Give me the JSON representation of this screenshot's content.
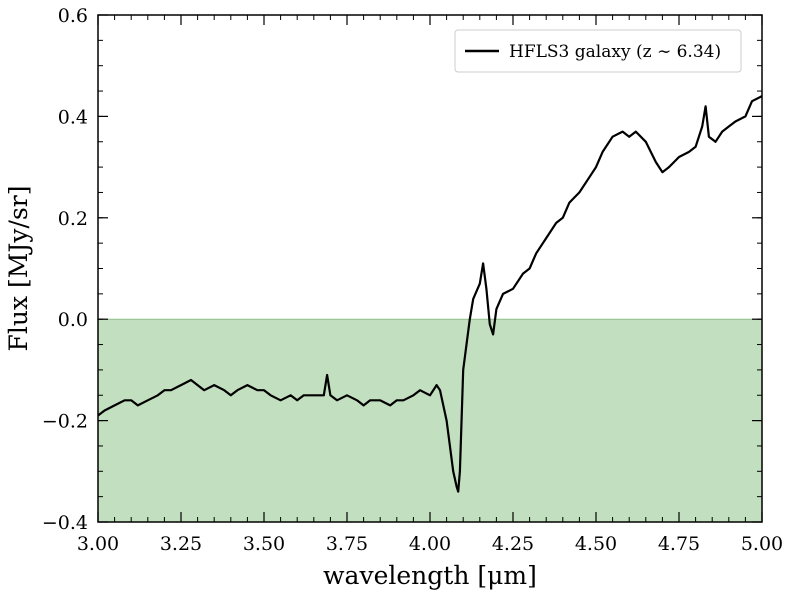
{
  "chart_data": {
    "type": "line",
    "title": "",
    "xlabel": "wavelength [μm]",
    "ylabel": "Flux [MJy/sr]",
    "xlim": [
      3.0,
      5.0
    ],
    "ylim": [
      -0.4,
      0.6
    ],
    "x_ticks": [
      3.0,
      3.25,
      3.5,
      3.75,
      4.0,
      4.25,
      4.5,
      4.75,
      5.0
    ],
    "x_tick_labels": [
      "3.00",
      "3.25",
      "3.50",
      "3.75",
      "4.00",
      "4.25",
      "4.50",
      "4.75",
      "5.00"
    ],
    "y_ticks": [
      -0.4,
      -0.2,
      0.0,
      0.2,
      0.4,
      0.6
    ],
    "y_tick_labels": [
      "−0.4",
      "−0.2",
      "0.0",
      "0.2",
      "0.4",
      "0.6"
    ],
    "grid": false,
    "legend_position": "top-right",
    "shaded_region": {
      "y_from": -0.4,
      "y_to": 0.0,
      "color": "#c2dfbf",
      "edge_color": "#8fc08a"
    },
    "series": [
      {
        "name": "HFLS3 galaxy (z ∼ 6.34)",
        "color": "#000000",
        "x": [
          3.0,
          3.02,
          3.05,
          3.08,
          3.1,
          3.12,
          3.15,
          3.18,
          3.2,
          3.22,
          3.25,
          3.28,
          3.3,
          3.32,
          3.35,
          3.38,
          3.4,
          3.42,
          3.45,
          3.48,
          3.5,
          3.52,
          3.55,
          3.58,
          3.6,
          3.62,
          3.65,
          3.68,
          3.69,
          3.7,
          3.72,
          3.75,
          3.78,
          3.8,
          3.82,
          3.85,
          3.88,
          3.9,
          3.92,
          3.95,
          3.97,
          4.0,
          4.02,
          4.03,
          4.05,
          4.06,
          4.07,
          4.08,
          4.085,
          4.09,
          4.1,
          4.11,
          4.12,
          4.13,
          4.15,
          4.16,
          4.17,
          4.18,
          4.19,
          4.2,
          4.22,
          4.25,
          4.28,
          4.3,
          4.32,
          4.35,
          4.38,
          4.4,
          4.42,
          4.45,
          4.48,
          4.5,
          4.52,
          4.55,
          4.58,
          4.6,
          4.62,
          4.65,
          4.68,
          4.7,
          4.72,
          4.75,
          4.78,
          4.8,
          4.82,
          4.83,
          4.84,
          4.86,
          4.88,
          4.9,
          4.92,
          4.95,
          4.97,
          5.0
        ],
        "y": [
          -0.19,
          -0.18,
          -0.17,
          -0.16,
          -0.16,
          -0.17,
          -0.16,
          -0.15,
          -0.14,
          -0.14,
          -0.13,
          -0.12,
          -0.13,
          -0.14,
          -0.13,
          -0.14,
          -0.15,
          -0.14,
          -0.13,
          -0.14,
          -0.14,
          -0.15,
          -0.16,
          -0.15,
          -0.16,
          -0.15,
          -0.15,
          -0.15,
          -0.11,
          -0.15,
          -0.16,
          -0.15,
          -0.16,
          -0.17,
          -0.16,
          -0.16,
          -0.17,
          -0.16,
          -0.16,
          -0.15,
          -0.14,
          -0.15,
          -0.13,
          -0.14,
          -0.2,
          -0.25,
          -0.3,
          -0.33,
          -0.34,
          -0.3,
          -0.1,
          -0.05,
          0.0,
          0.04,
          0.07,
          0.11,
          0.06,
          -0.01,
          -0.03,
          0.02,
          0.05,
          0.06,
          0.09,
          0.1,
          0.13,
          0.16,
          0.19,
          0.2,
          0.23,
          0.25,
          0.28,
          0.3,
          0.33,
          0.36,
          0.37,
          0.36,
          0.37,
          0.35,
          0.31,
          0.29,
          0.3,
          0.32,
          0.33,
          0.34,
          0.38,
          0.42,
          0.36,
          0.35,
          0.37,
          0.38,
          0.39,
          0.4,
          0.43,
          0.44
        ]
      }
    ]
  }
}
